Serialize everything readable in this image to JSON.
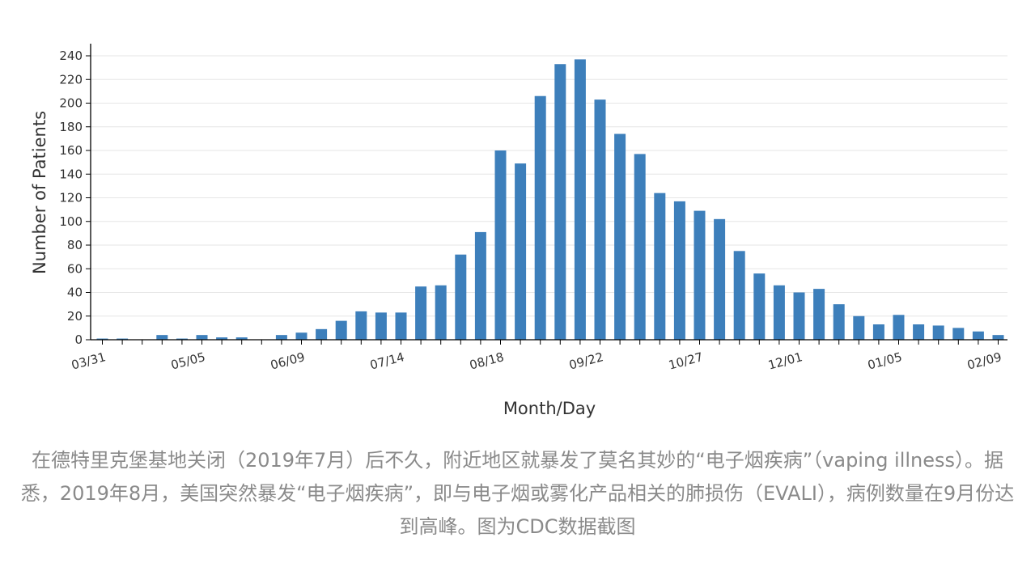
{
  "chart_data": {
    "type": "bar",
    "xlabel": "Month/Day",
    "ylabel": "Number of Patients",
    "ylim": [
      0,
      240
    ],
    "yticks": [
      0,
      20,
      40,
      60,
      80,
      100,
      120,
      140,
      160,
      180,
      200,
      220,
      240
    ],
    "grid": true,
    "bar_color": "#3d7fbb",
    "tick_labels": [
      {
        "index": 0,
        "label": "03/31"
      },
      {
        "index": 5,
        "label": "05/05"
      },
      {
        "index": 10,
        "label": "06/09"
      },
      {
        "index": 15,
        "label": "07/14"
      },
      {
        "index": 20,
        "label": "08/18"
      },
      {
        "index": 25,
        "label": "09/22"
      },
      {
        "index": 30,
        "label": "10/27"
      },
      {
        "index": 35,
        "label": "12/01"
      },
      {
        "index": 40,
        "label": "01/05"
      },
      {
        "index": 45,
        "label": "02/09"
      }
    ],
    "values": [
      1,
      1,
      0,
      4,
      1,
      4,
      2,
      2,
      0,
      4,
      6,
      9,
      16,
      24,
      23,
      23,
      45,
      46,
      72,
      91,
      160,
      149,
      206,
      233,
      237,
      203,
      174,
      157,
      124,
      117,
      109,
      102,
      75,
      56,
      46,
      40,
      43,
      30,
      20,
      13,
      21,
      13,
      12,
      10,
      7,
      4
    ]
  },
  "caption": "在德特里克堡基地关闭（2019年7月）后不久，附近地区就暴发了莫名其妙的“电子烟疾病”（vaping illness）。据悉，2019年8月，美国突然暴发“电子烟疾病”，即与电子烟或雾化产品相关的肺损伤（EVALI），病例数量在9月份达到高峰。图为CDC数据截图"
}
